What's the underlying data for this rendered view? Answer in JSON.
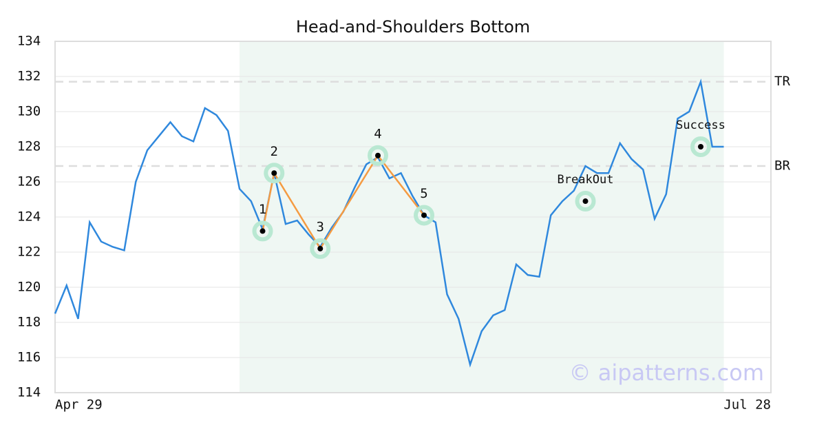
{
  "chart_data": {
    "type": "line",
    "title": "Head-and-Shoulders Bottom",
    "categories": [
      "Apr 29",
      null,
      null,
      null,
      null,
      null,
      null,
      null,
      null,
      null,
      null,
      null,
      null,
      null,
      null,
      null,
      null,
      null,
      null,
      null,
      null,
      null,
      null,
      null,
      null,
      null,
      null,
      null,
      null,
      null,
      null,
      null,
      null,
      null,
      null,
      null,
      null,
      null,
      null,
      null,
      null,
      null,
      null,
      null,
      null,
      null,
      null,
      null,
      null,
      null,
      null,
      null,
      null,
      null,
      null,
      null,
      null,
      null,
      "Jul 28"
    ],
    "values": [
      118.5,
      120.1,
      118.2,
      123.7,
      122.6,
      122.3,
      122.1,
      126.0,
      127.8,
      128.6,
      129.4,
      128.6,
      128.3,
      130.2,
      129.8,
      128.9,
      125.6,
      124.9,
      123.3,
      126.5,
      123.6,
      123.8,
      123.0,
      122.3,
      123.4,
      124.3,
      125.7,
      127.0,
      127.4,
      126.2,
      126.5,
      125.2,
      124.1,
      123.7,
      119.6,
      118.2,
      115.6,
      117.5,
      118.4,
      118.7,
      121.3,
      120.7,
      120.6,
      124.1,
      124.9,
      125.5,
      126.9,
      126.5,
      126.5,
      128.2,
      127.3,
      126.7,
      123.9,
      125.3,
      129.6,
      130.0,
      131.7,
      128.0,
      128.0
    ],
    "color": "#2f88dd",
    "ylim": [
      114,
      134
    ],
    "yticks": [
      114,
      116,
      118,
      120,
      122,
      124,
      126,
      128,
      130,
      132,
      134
    ],
    "grid": true,
    "highlight": [
      16,
      58
    ],
    "highlight_color": "#eff7f3",
    "pattern": {
      "labels": [
        "1",
        "2",
        "3",
        "4",
        "5"
      ],
      "x": [
        18,
        19,
        23,
        28,
        32
      ],
      "values": [
        123.2,
        126.5,
        122.2,
        127.5,
        124.1
      ],
      "color": "#f59b42"
    },
    "signals": {
      "labels": [
        "BreakOut",
        "Success"
      ],
      "x": [
        46,
        56
      ],
      "values": [
        124.9,
        128.0
      ]
    },
    "levels": {
      "labels": [
        "TR",
        "BR"
      ],
      "values": [
        131.7,
        126.9
      ]
    },
    "marker_color": "#b9e8d2",
    "watermark": "© aipatterns.com"
  }
}
